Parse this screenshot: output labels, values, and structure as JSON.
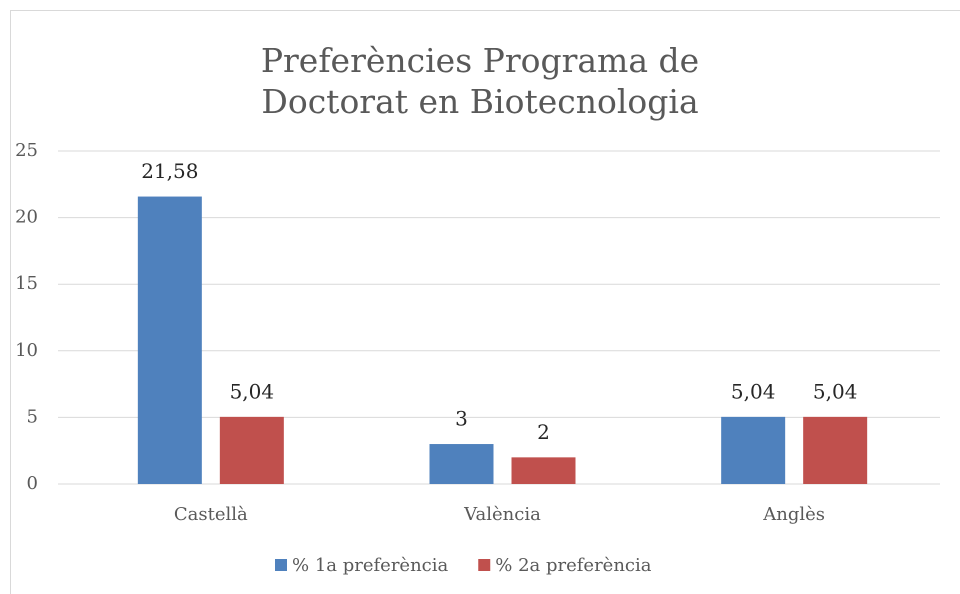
{
  "chart_data": {
    "type": "bar",
    "title": "Preferències Programa de Doctorat en Biotecnologia",
    "categories": [
      "Castellà",
      "València",
      "Anglès"
    ],
    "series": [
      {
        "name": "% 1a preferència",
        "color": "#4f81bd",
        "values": [
          21.58,
          3,
          5.04
        ],
        "value_labels": [
          "21,58",
          "3",
          "5,04"
        ]
      },
      {
        "name": "% 2a preferència",
        "color": "#c0504d",
        "values": [
          5.04,
          2,
          5.04
        ],
        "value_labels": [
          "5,04",
          "2",
          "5,04"
        ]
      }
    ],
    "ylim": [
      0,
      25
    ],
    "yticks": [
      0,
      5,
      10,
      15,
      20,
      25
    ],
    "grid": true,
    "legend": "bottom"
  }
}
